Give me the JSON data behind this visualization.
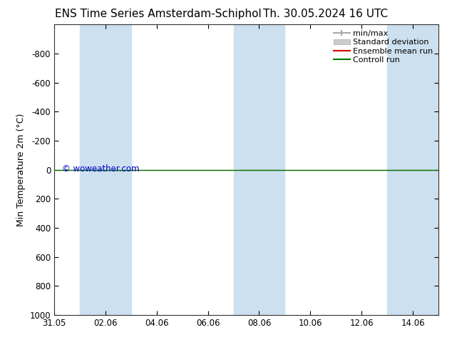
{
  "title_left": "ENS Time Series Amsterdam-Schiphol",
  "title_right": "Th. 30.05.2024 16 UTC",
  "ylabel": "Min Temperature 2m (°C)",
  "ylim": [
    -1000,
    1000
  ],
  "yticks": [
    -800,
    -600,
    -400,
    -200,
    0,
    200,
    400,
    600,
    800,
    1000
  ],
  "xtick_labels": [
    "31.05",
    "02.06",
    "04.06",
    "06.06",
    "08.06",
    "10.06",
    "12.06",
    "14.06"
  ],
  "xtick_positions": [
    0,
    2,
    4,
    6,
    8,
    10,
    12,
    14
  ],
  "shaded_ranges": [
    [
      1,
      3
    ],
    [
      7,
      9
    ],
    [
      13,
      15
    ]
  ],
  "background_color": "#ffffff",
  "plot_bg_color": "#ffffff",
  "shaded_color": "#cce0f0",
  "green_line_y": 0,
  "watermark": "© woweather.com",
  "watermark_color": "#0000cc",
  "legend_entries": [
    "min/max",
    "Standard deviation",
    "Ensemble mean run",
    "Controll run"
  ],
  "legend_line_color": "#aaaaaa",
  "legend_std_color": "#cccccc",
  "ensemble_color": "#dd0000",
  "control_color": "#007700",
  "title_fontsize": 11,
  "axis_fontsize": 9,
  "tick_fontsize": 8.5
}
